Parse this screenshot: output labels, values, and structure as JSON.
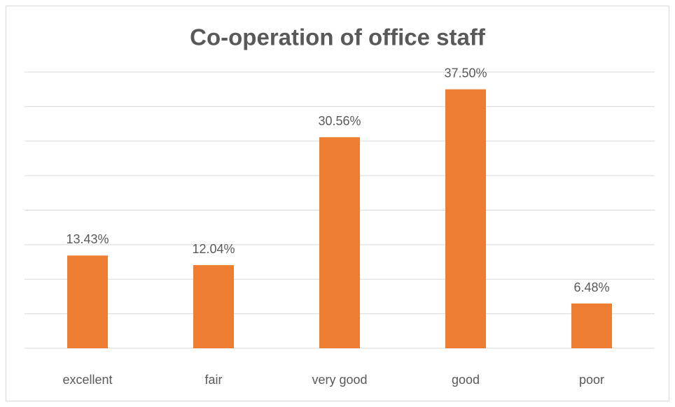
{
  "chart_data": {
    "type": "bar",
    "title": "Co-operation of office staff",
    "categories": [
      "excellent",
      "fair",
      "very good",
      "good",
      "poor"
    ],
    "values": [
      13.43,
      12.04,
      30.56,
      37.5,
      6.48
    ],
    "value_labels": [
      "13.43%",
      "12.04%",
      "30.56%",
      "37.50%",
      "6.48%"
    ],
    "color": "#ed7d31",
    "ylim": [
      0,
      40
    ],
    "yticks": [
      0,
      5,
      10,
      15,
      20,
      25,
      30,
      35,
      40
    ],
    "grid": true
  }
}
